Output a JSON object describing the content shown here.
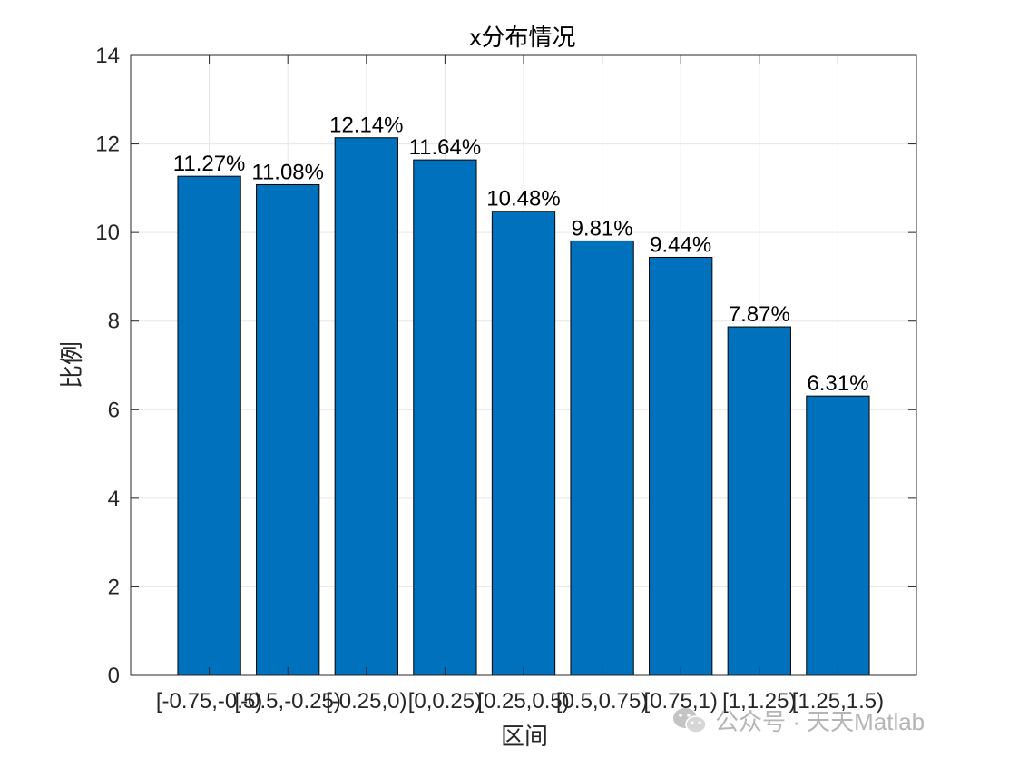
{
  "chart_data": {
    "type": "bar",
    "title": "x分布情况",
    "xlabel": "区间",
    "ylabel": "比例",
    "categories": [
      "[-0.75,-0.5)",
      "[-0.5,-0.25)",
      "[-0.25,0)",
      "[0,0.25)",
      "[0.25,0.5)",
      "[0.5,0.75)",
      "[0.75,1)",
      "[1,1.25)",
      "[1.25,1.5)"
    ],
    "values": [
      11.27,
      11.08,
      12.14,
      11.64,
      10.48,
      9.81,
      9.44,
      7.87,
      6.31
    ],
    "value_labels": [
      "11.27%",
      "11.08%",
      "12.14%",
      "11.64%",
      "10.48%",
      "9.81%",
      "9.44%",
      "7.87%",
      "6.31%"
    ],
    "ylim": [
      0,
      14
    ],
    "yticks": [
      0,
      2,
      4,
      6,
      8,
      10,
      12,
      14
    ],
    "grid": true,
    "bar_color": "#0072BD"
  },
  "watermark": {
    "icon": "wechat-icon",
    "text": "公众号 · 天天Matlab"
  }
}
